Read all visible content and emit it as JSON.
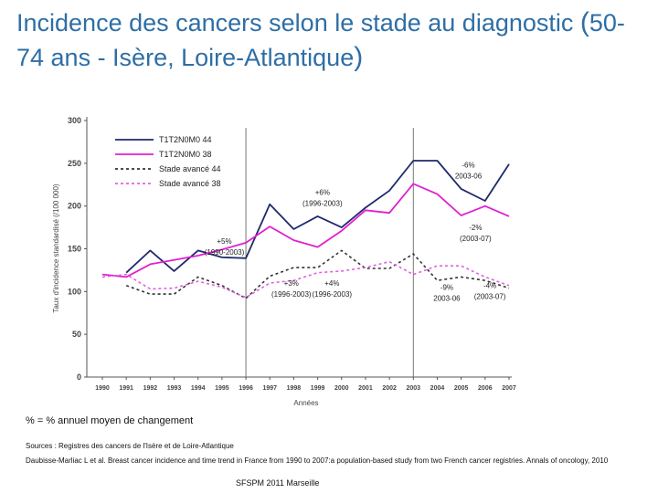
{
  "title": {
    "part1": "Incidence des cancers selon le stade au diagnostic ",
    "paren_open": "(",
    "part2": "50-74 ans - Isère, Loire-Atlantique",
    "paren_close": ")"
  },
  "chart_data": {
    "type": "line",
    "title": "Incidence des cancers selon le stade au diagnostic (50-74 ans - Isère, Loire-Atlantique)",
    "xlabel": "Années",
    "ylabel": "Taux d'incidence standardisé (/100 000)",
    "ylim": [
      0,
      300
    ],
    "yticks": [
      0,
      50,
      100,
      150,
      200,
      250,
      300
    ],
    "x": [
      "1990",
      "1991",
      "1992",
      "1993",
      "1994",
      "1995",
      "1996",
      "1997",
      "1998",
      "1999",
      "2000",
      "2001",
      "2002",
      "2003",
      "2004",
      "2005",
      "2006",
      "2007"
    ],
    "series": [
      {
        "name": "T1T2N0M0 44",
        "color": "#1f2a6b",
        "style": "solid",
        "values": [
          null,
          122,
          148,
          124,
          148,
          140,
          139,
          202,
          173,
          188,
          175,
          198,
          218,
          253,
          253,
          220,
          206,
          249
        ]
      },
      {
        "name": "T1T2N0M0 38",
        "color": "#e020d0",
        "style": "solid",
        "values": [
          120,
          117,
          132,
          137,
          142,
          149,
          157,
          176,
          160,
          152,
          171,
          195,
          192,
          226,
          214,
          189,
          200,
          188
        ]
      },
      {
        "name": "Stade avancé 44",
        "color": "#333333",
        "style": "dashed",
        "values": [
          null,
          107,
          97,
          97,
          117,
          107,
          92,
          118,
          128,
          128,
          148,
          127,
          127,
          144,
          113,
          117,
          113,
          104
        ]
      },
      {
        "name": "Stade avancé 38",
        "color": "#e060e0",
        "style": "dashed",
        "values": [
          117,
          120,
          103,
          104,
          112,
          105,
          93,
          110,
          113,
          122,
          124,
          128,
          135,
          120,
          130,
          130,
          117,
          107
        ]
      }
    ],
    "vlines": [
      "1996",
      "2003"
    ],
    "annotations": [
      {
        "text": [
          "-6%",
          "2003-06"
        ],
        "x": "2005.3",
        "y": 245
      },
      {
        "text": [
          "+6%",
          "(1996-2003)"
        ],
        "x": "1999.2",
        "y": 213
      },
      {
        "text": [
          "-2%",
          "(2003-07)"
        ],
        "x": "2005.6",
        "y": 172
      },
      {
        "text": [
          "+5%",
          "(1990-2003)"
        ],
        "x": "1995.1",
        "y": 156
      },
      {
        "text": [
          "+3%",
          "(1996-2003)"
        ],
        "x": "1997.9",
        "y": 107
      },
      {
        "text": [
          "+4%",
          "(1996-2003)"
        ],
        "x": "1999.6",
        "y": 107
      },
      {
        "text": [
          "-9%",
          "2003-06"
        ],
        "x": "2004.4",
        "y": 102
      },
      {
        "text": [
          "-4%",
          "(2003-07)"
        ],
        "x": "2006.2",
        "y": 104
      }
    ]
  },
  "notes": {
    "pct_line": "% = % annuel moyen de changement",
    "sources": "Sources : Registres des cancers de l'Isère et de Loire-Atlantique",
    "reference": "Daubisse-Marliac L et al. Breast cancer incidence and time trend in France from 1990 to 2007:a population-based study from two French cancer registries. Annals of oncology, 2010",
    "footer": "SFSPM 2011 Marseille"
  }
}
